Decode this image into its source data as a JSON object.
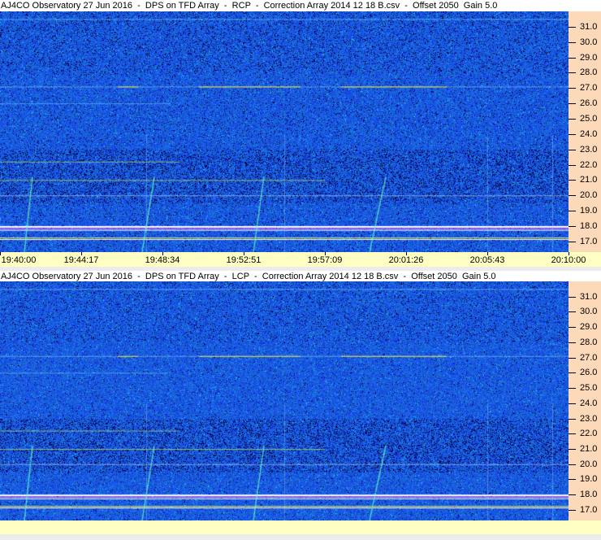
{
  "panels": [
    {
      "title": "AJ4CO Observatory 27 Jun 2016  -  DPS on TFD Array  -  RCP  -  Correction Array 2014 12 18 B.csv  -  Offset 2050  Gain 5.0",
      "polarization": "RCP"
    },
    {
      "title": "AJ4CO Observatory 27 Jun 2016  -  DPS on TFD Array  -  LCP  -  Correction Array 2014 12 18 B.csv  -  Offset 2050  Gain 5.0",
      "polarization": "LCP"
    }
  ],
  "chart_data": {
    "type": "heatmap",
    "freq_ticks": [
      "31.0",
      "30.0",
      "29.0",
      "28.0",
      "27.0",
      "26.0",
      "25.0",
      "24.0",
      "23.0",
      "22.0",
      "21.0",
      "20.0",
      "19.0",
      "18.0",
      "17.0"
    ],
    "freq_range_mhz": [
      16.3,
      32.0
    ],
    "time_ticks": [
      "19:40:00",
      "19:44:17",
      "19:48:34",
      "19:52:51",
      "19:57:09",
      "20:01:26",
      "20:05:43",
      "20:10:00"
    ],
    "time_range": [
      "19:40:00",
      "20:10:00"
    ],
    "interference_lines_mhz": [
      31.5,
      27.1,
      26.0,
      22.2,
      21.0,
      18.0,
      17.9,
      17.2
    ],
    "colors": {
      "background": "#1a3fd0",
      "strong": "#ffffff",
      "rfi": "#ff50ff",
      "hot": "#ffff40",
      "axis": "#fcd9b9",
      "time_axis": "#ffffc4"
    }
  }
}
